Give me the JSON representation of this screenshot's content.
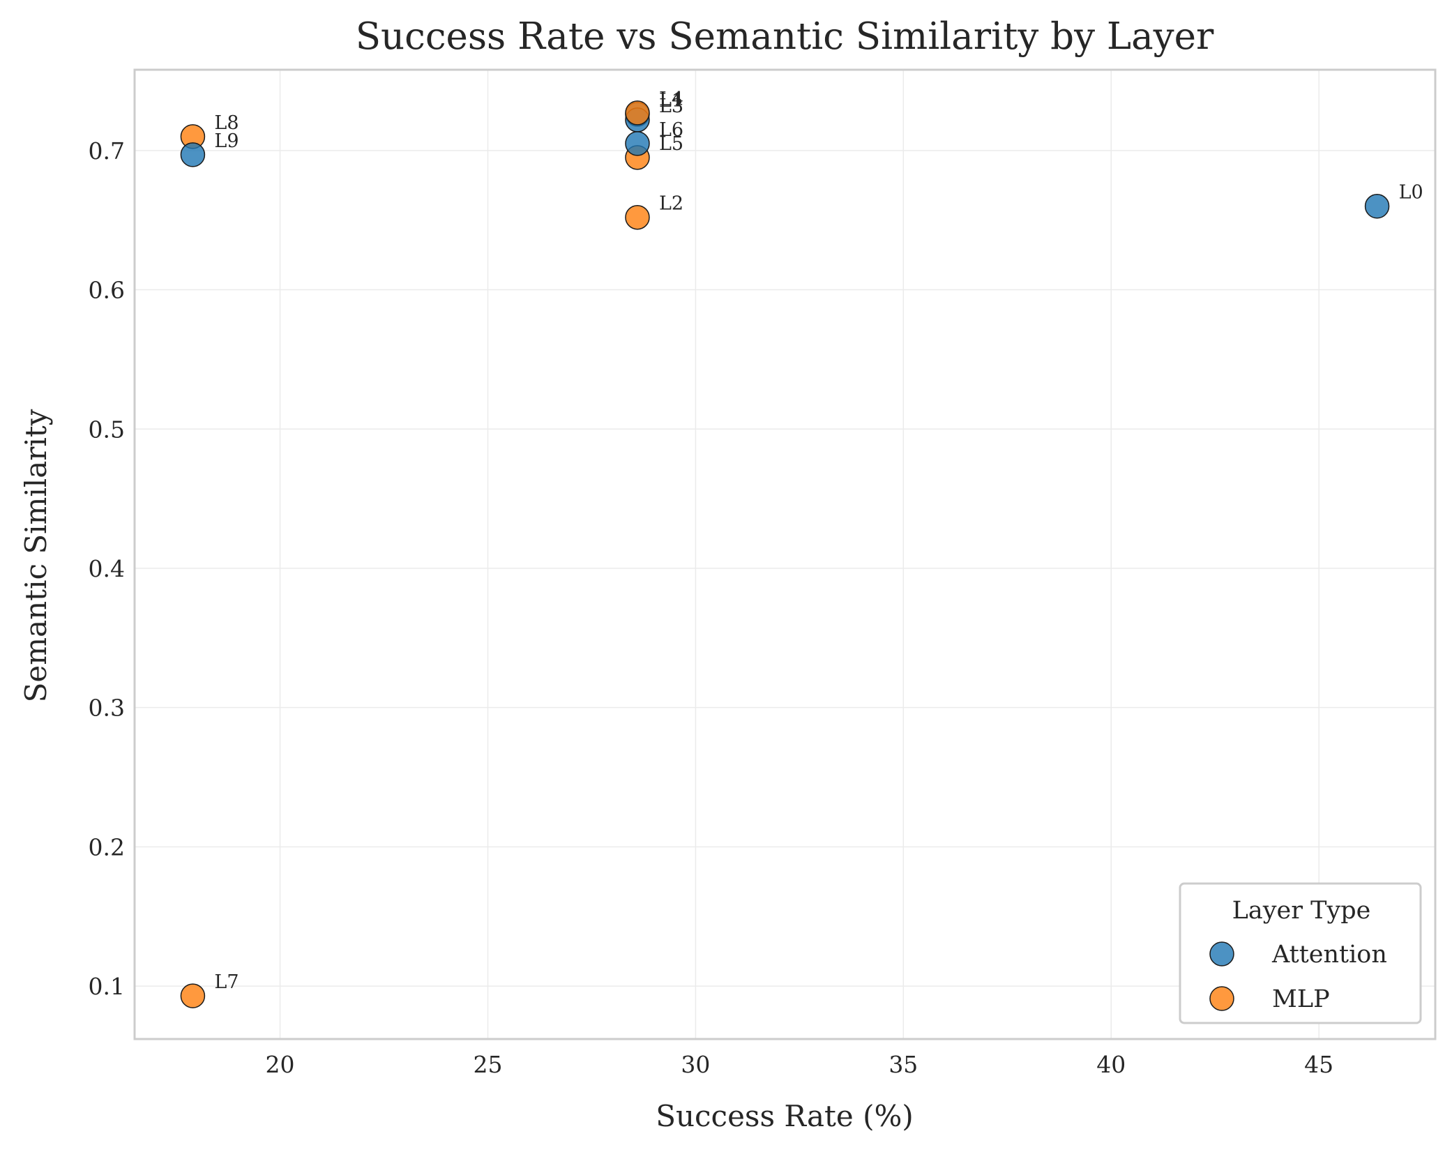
{
  "chart_data": {
    "type": "scatter",
    "title": "Success Rate vs Semantic Similarity by Layer",
    "xlabel": "Success Rate (%)",
    "ylabel": "Semantic Similarity",
    "xlim": [
      16.5,
      47.8
    ],
    "ylim": [
      0.062,
      0.758
    ],
    "xticks": [
      20,
      25,
      30,
      35,
      40,
      45
    ],
    "yticks": [
      0.1,
      0.2,
      0.3,
      0.4,
      0.5,
      0.6,
      0.7
    ],
    "grid": true,
    "legend": {
      "title": "Layer Type",
      "placement": "bottom-right",
      "entries": [
        "Attention",
        "MLP"
      ]
    },
    "series": [
      {
        "name": "Attention",
        "color": "#1f77b4",
        "points": [
          {
            "label": "L0",
            "x": 46.4,
            "y": 0.66
          },
          {
            "label": "L1",
            "x": 28.6,
            "y": 0.726
          },
          {
            "label": "L3",
            "x": 28.6,
            "y": 0.722
          },
          {
            "label": "L6",
            "x": 28.6,
            "y": 0.705
          },
          {
            "label": "L9",
            "x": 17.9,
            "y": 0.697
          }
        ]
      },
      {
        "name": "MLP",
        "color": "#ff7f0e",
        "points": [
          {
            "label": "L2",
            "x": 28.6,
            "y": 0.652
          },
          {
            "label": "L4",
            "x": 28.6,
            "y": 0.727
          },
          {
            "label": "L5",
            "x": 28.6,
            "y": 0.695
          },
          {
            "label": "L7",
            "x": 17.9,
            "y": 0.093
          },
          {
            "label": "L8",
            "x": 17.9,
            "y": 0.71
          }
        ]
      }
    ]
  }
}
